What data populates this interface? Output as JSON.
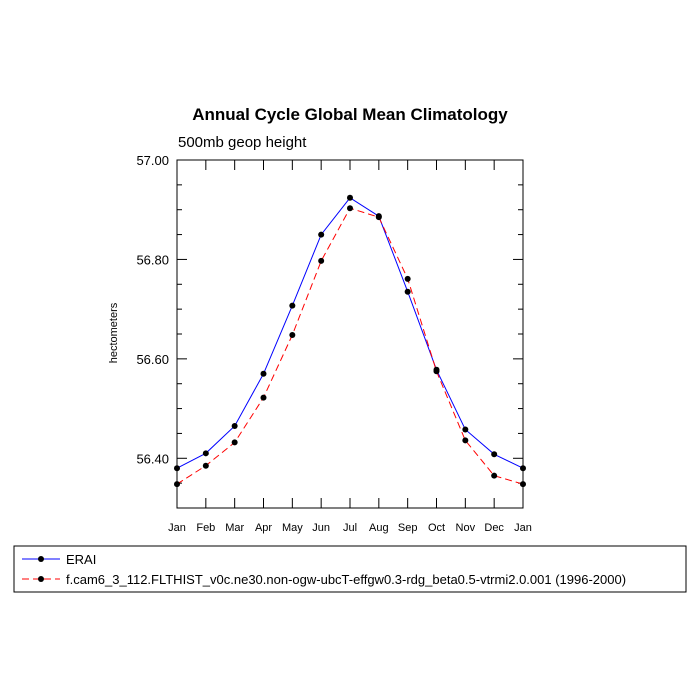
{
  "chart_data": {
    "type": "line",
    "title": "Annual Cycle Global Mean Climatology",
    "subtitle": "500mb geop height",
    "ylabel": "hectometers",
    "xlabel": "",
    "categories": [
      "Jan",
      "Feb",
      "Mar",
      "Apr",
      "May",
      "Jun",
      "Jul",
      "Aug",
      "Sep",
      "Oct",
      "Nov",
      "Dec",
      "Jan"
    ],
    "ylim": [
      56.3,
      57.0
    ],
    "yticks": [
      56.4,
      56.6,
      56.8,
      57.0
    ],
    "ytick_labels": [
      "56.40",
      "56.60",
      "56.80",
      "57.00"
    ],
    "grid": false,
    "legend_position": "bottom",
    "series": [
      {
        "name": "ERAI",
        "color": "#0000ff",
        "line_style": "solid",
        "marker": "filled-circle",
        "values": [
          56.38,
          56.41,
          56.465,
          56.57,
          56.707,
          56.85,
          56.924,
          56.887,
          56.735,
          56.578,
          56.458,
          56.408,
          56.38
        ]
      },
      {
        "name": "f.cam6_3_112.FLTHIST_v0c.ne30.non-ogw-ubcT-effgw0.3-rdg_beta0.5-vtrmi2.0.001 (1996-2000)",
        "color": "#ff0000",
        "line_style": "dashed",
        "marker": "filled-circle",
        "values": [
          56.348,
          56.385,
          56.432,
          56.522,
          56.648,
          56.797,
          56.903,
          56.885,
          56.761,
          56.575,
          56.436,
          56.365,
          56.348
        ]
      }
    ]
  }
}
